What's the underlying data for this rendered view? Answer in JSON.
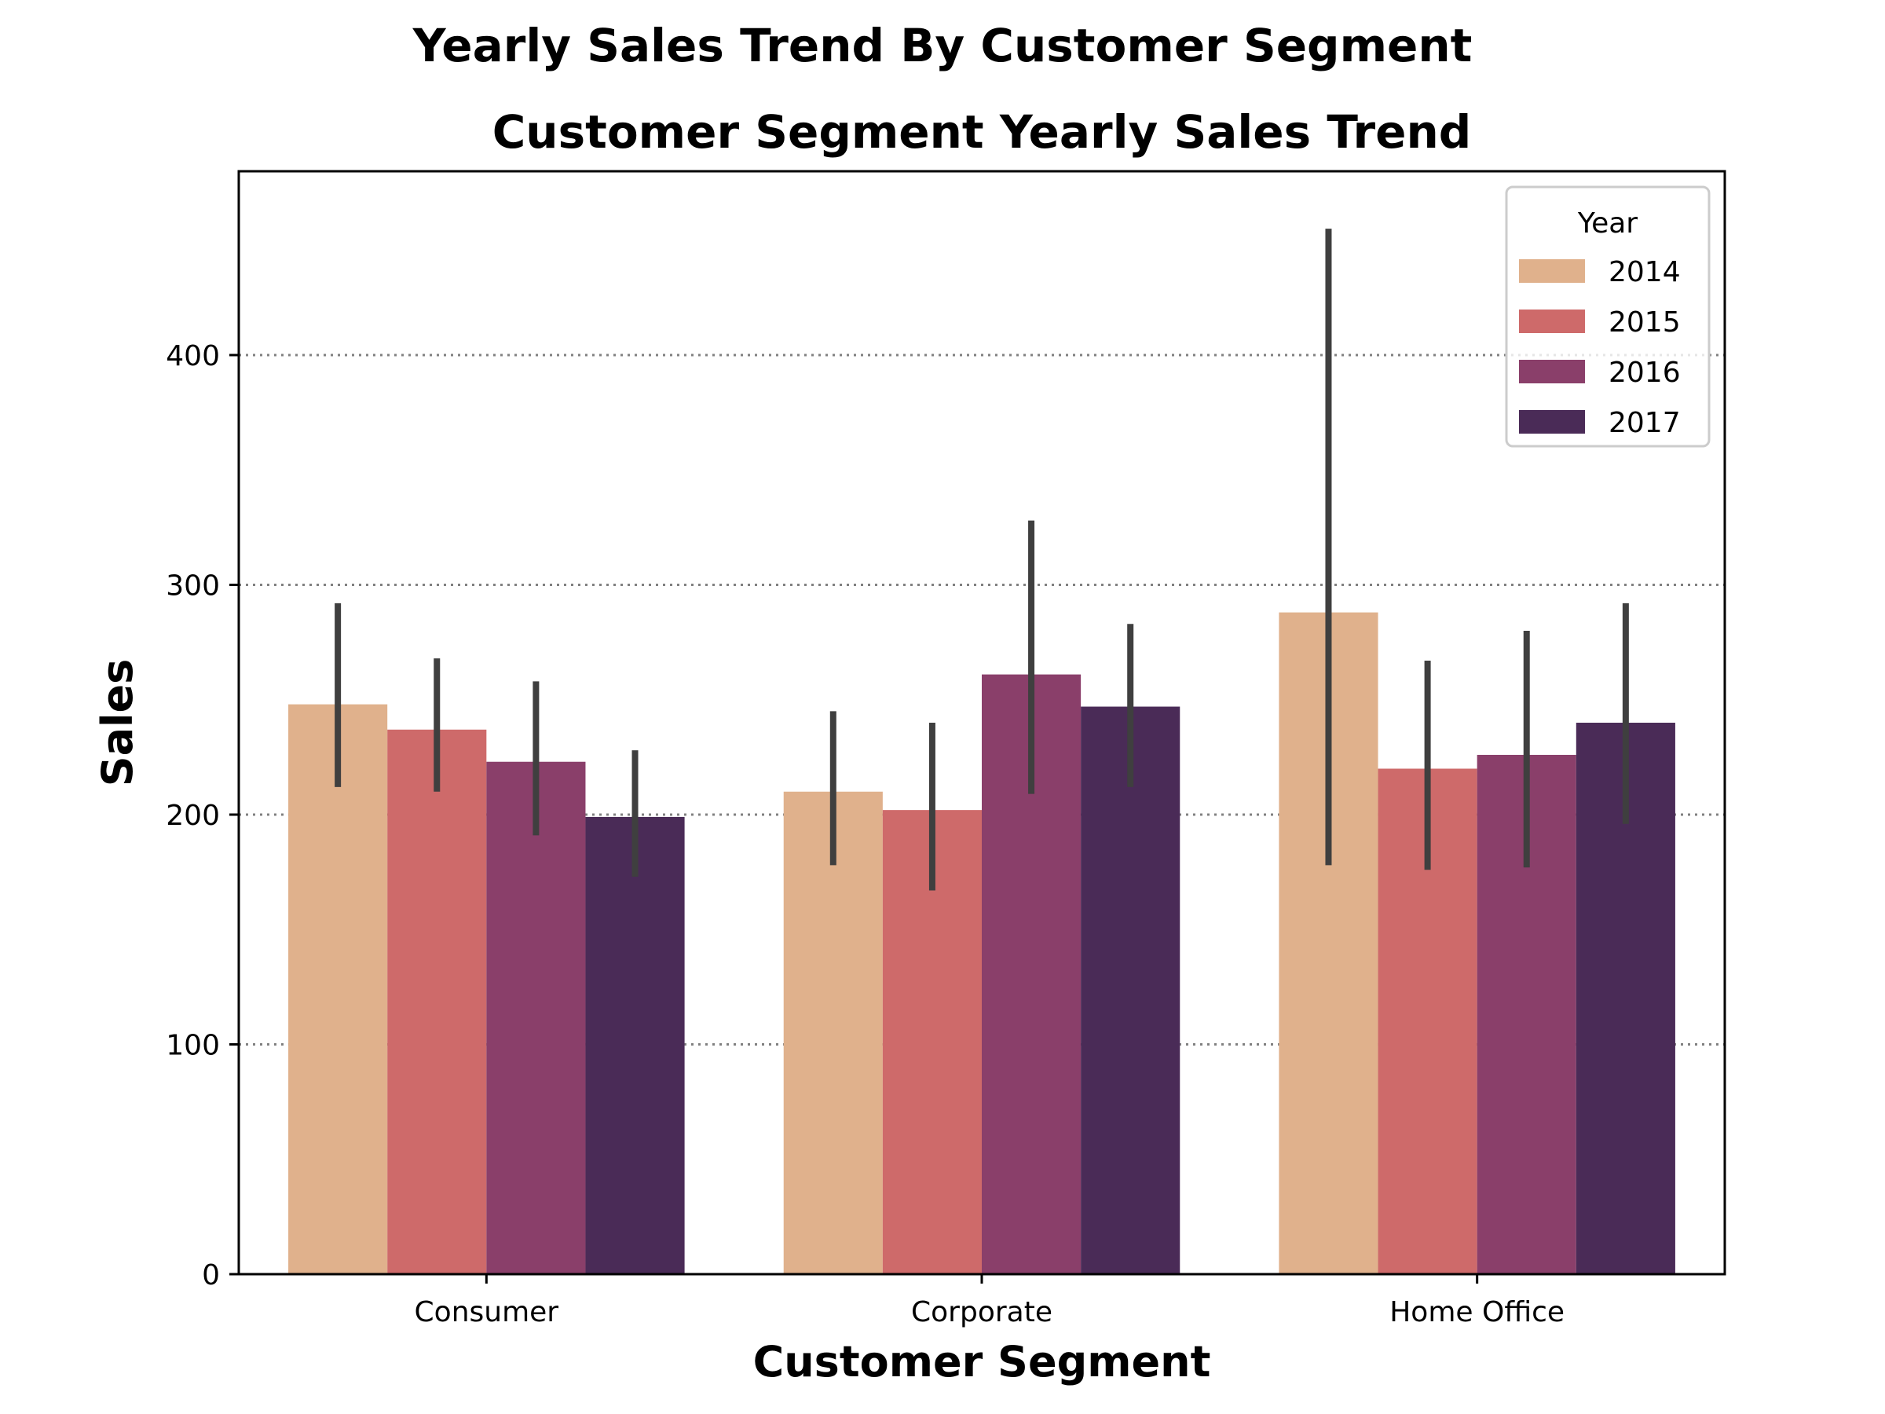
{
  "figure": {
    "suptitle": "Yearly Sales Trend By Customer Segment"
  },
  "chart_data": {
    "type": "bar",
    "title": "Customer Segment Yearly Sales Trend",
    "xlabel": "Customer Segment",
    "ylabel": "Sales",
    "categories": [
      "Consumer",
      "Corporate",
      "Home Office"
    ],
    "ylim": [
      0,
      480
    ],
    "yticks": [
      0,
      100,
      200,
      300,
      400
    ],
    "grid": "y-dotted",
    "legend": {
      "title": "Year",
      "placement": "top-right"
    },
    "series": [
      {
        "name": "2014",
        "color": "#e0b18c",
        "values": [
          248,
          210,
          288
        ],
        "err_low": [
          212,
          178,
          178
        ],
        "err_high": [
          292,
          245,
          455
        ]
      },
      {
        "name": "2015",
        "color": "#ce6a6a",
        "values": [
          237,
          202,
          220
        ],
        "err_low": [
          210,
          167,
          176
        ],
        "err_high": [
          268,
          240,
          267
        ]
      },
      {
        "name": "2016",
        "color": "#8a3f6a",
        "values": [
          223,
          261,
          226
        ],
        "err_low": [
          191,
          209,
          177
        ],
        "err_high": [
          258,
          328,
          280
        ]
      },
      {
        "name": "2017",
        "color": "#4a2b57",
        "values": [
          199,
          247,
          240
        ],
        "err_low": [
          173,
          212,
          196
        ],
        "err_high": [
          228,
          283,
          292
        ]
      }
    ]
  }
}
